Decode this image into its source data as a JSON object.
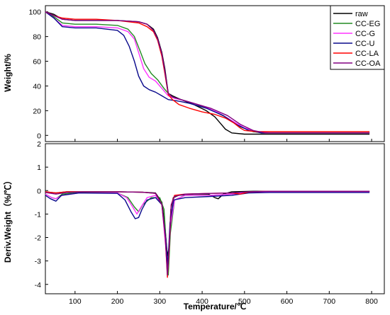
{
  "chart_data": [
    {
      "type": "line",
      "ylabel": "Weight/%",
      "xlim": [
        30,
        830
      ],
      "ylim": [
        -5,
        105
      ],
      "yticks": [
        0,
        20,
        40,
        60,
        80,
        100
      ],
      "legend_position": "top-right",
      "legend": [
        "raw",
        "CC-EG",
        "CC-G",
        "CC-U",
        "CC-LA",
        "CC-OA"
      ],
      "series": [
        {
          "name": "raw",
          "color": "#000000",
          "x": [
            30,
            50,
            70,
            100,
            150,
            200,
            250,
            270,
            285,
            295,
            305,
            312,
            320,
            330,
            350,
            380,
            410,
            430,
            445,
            455,
            470,
            500,
            550,
            650,
            750,
            795
          ],
          "y": [
            100,
            98,
            94,
            93,
            93,
            93,
            92,
            90,
            86,
            79,
            67,
            54,
            34,
            32,
            29,
            25,
            20,
            15,
            9,
            5,
            2,
            1,
            1,
            1,
            1,
            1
          ]
        },
        {
          "name": "CC-EG",
          "color": "#228B22",
          "x": [
            30,
            50,
            70,
            100,
            150,
            200,
            225,
            240,
            255,
            265,
            280,
            295,
            310,
            320,
            330,
            350,
            380,
            420,
            460,
            490,
            520,
            550,
            650,
            795
          ],
          "y": [
            100,
            96,
            91,
            90,
            90,
            89,
            86,
            80,
            67,
            58,
            50,
            45,
            38,
            34,
            31,
            29,
            26,
            21,
            14,
            7,
            3,
            2,
            2,
            2
          ]
        },
        {
          "name": "CC-G",
          "color": "#FF33FF",
          "x": [
            30,
            50,
            70,
            100,
            150,
            200,
            225,
            240,
            252,
            262,
            275,
            290,
            305,
            320,
            335,
            360,
            400,
            440,
            470,
            500,
            530,
            560,
            650,
            795
          ],
          "y": [
            100,
            95,
            89,
            88,
            88,
            87,
            84,
            78,
            65,
            54,
            47,
            44,
            38,
            32,
            30,
            28,
            24,
            18,
            12,
            6,
            3,
            2,
            2,
            2
          ]
        },
        {
          "name": "CC-U",
          "color": "#0A0A8C",
          "x": [
            30,
            50,
            70,
            100,
            150,
            200,
            215,
            228,
            240,
            250,
            262,
            275,
            290,
            305,
            320,
            340,
            370,
            410,
            450,
            480,
            510,
            540,
            650,
            795
          ],
          "y": [
            100,
            95,
            88,
            87,
            87,
            85,
            81,
            72,
            60,
            48,
            40,
            37,
            35,
            32,
            29,
            28,
            26,
            22,
            16,
            9,
            4,
            2,
            2,
            2
          ]
        },
        {
          "name": "CC-LA",
          "color": "#FF0000",
          "x": [
            30,
            50,
            70,
            100,
            150,
            200,
            250,
            270,
            285,
            295,
            305,
            312,
            320,
            330,
            345,
            370,
            400,
            430,
            455,
            475,
            490,
            500,
            530,
            560,
            650,
            795
          ],
          "y": [
            100,
            97,
            95,
            94,
            94,
            93,
            91,
            88,
            84,
            77,
            64,
            50,
            33,
            29,
            25,
            22,
            19,
            17,
            14,
            10,
            6,
            4,
            3,
            3,
            3,
            3
          ]
        },
        {
          "name": "CC-OA",
          "color": "#800080",
          "x": [
            30,
            50,
            70,
            100,
            150,
            200,
            250,
            270,
            285,
            295,
            305,
            312,
            320,
            330,
            350,
            380,
            420,
            460,
            490,
            520,
            550,
            650,
            795
          ],
          "y": [
            100,
            97,
            94,
            93,
            93,
            93,
            92,
            90,
            85,
            78,
            66,
            52,
            34,
            31,
            29,
            26,
            22,
            16,
            9,
            4,
            2,
            2,
            2
          ]
        }
      ]
    },
    {
      "type": "line",
      "xlabel": "Temperature/℃",
      "ylabel": "Deriv.Weight（%/℃）",
      "xlim": [
        30,
        830
      ],
      "ylim": [
        -4.4,
        2
      ],
      "xticks": [
        100,
        200,
        300,
        400,
        500,
        600,
        700,
        800
      ],
      "yticks": [
        2,
        1,
        0,
        -1,
        -2,
        -3,
        -4
      ],
      "series": [
        {
          "name": "raw",
          "color": "#000000",
          "x": [
            30,
            55,
            80,
            120,
            200,
            260,
            290,
            305,
            312,
            318,
            322,
            326,
            332,
            345,
            380,
            415,
            430,
            438,
            450,
            470,
            520,
            650,
            795
          ],
          "y": [
            -0.05,
            -0.1,
            -0.05,
            -0.05,
            -0.05,
            -0.07,
            -0.1,
            -0.5,
            -1.5,
            -2.8,
            -2.4,
            -0.8,
            -0.3,
            -0.2,
            -0.15,
            -0.15,
            -0.3,
            -0.35,
            -0.15,
            -0.05,
            -0.03,
            -0.03,
            -0.03
          ]
        },
        {
          "name": "CC-EG",
          "color": "#228B22",
          "x": [
            30,
            45,
            55,
            70,
            110,
            200,
            225,
            240,
            250,
            260,
            280,
            300,
            310,
            316,
            320,
            325,
            335,
            360,
            420,
            470,
            510,
            560,
            650,
            795
          ],
          "y": [
            -0.15,
            -0.3,
            -0.35,
            -0.15,
            -0.08,
            -0.1,
            -0.3,
            -0.7,
            -0.9,
            -0.6,
            -0.3,
            -0.3,
            -0.8,
            -2.5,
            -3.6,
            -1.8,
            -0.4,
            -0.2,
            -0.2,
            -0.15,
            -0.08,
            -0.05,
            -0.05,
            -0.05
          ]
        },
        {
          "name": "CC-G",
          "color": "#FF33FF",
          "x": [
            30,
            45,
            55,
            70,
            110,
            200,
            222,
            236,
            246,
            256,
            270,
            290,
            305,
            313,
            319,
            325,
            335,
            360,
            420,
            470,
            510,
            560,
            650,
            795
          ],
          "y": [
            -0.15,
            -0.3,
            -0.35,
            -0.2,
            -0.1,
            -0.1,
            -0.3,
            -0.7,
            -1.0,
            -0.7,
            -0.3,
            -0.2,
            -0.6,
            -2.2,
            -3.4,
            -1.5,
            -0.4,
            -0.2,
            -0.2,
            -0.15,
            -0.08,
            -0.05,
            -0.05,
            -0.05
          ]
        },
        {
          "name": "CC-U",
          "color": "#0A0A8C",
          "x": [
            30,
            42,
            55,
            68,
            110,
            200,
            218,
            232,
            242,
            250,
            258,
            270,
            290,
            305,
            314,
            319,
            324,
            333,
            360,
            420,
            470,
            510,
            560,
            650,
            795
          ],
          "y": [
            -0.2,
            -0.35,
            -0.45,
            -0.2,
            -0.1,
            -0.12,
            -0.4,
            -0.9,
            -1.2,
            -1.15,
            -0.8,
            -0.4,
            -0.3,
            -0.6,
            -2.0,
            -3.2,
            -1.4,
            -0.4,
            -0.3,
            -0.25,
            -0.2,
            -0.1,
            -0.08,
            -0.08,
            -0.08
          ]
        },
        {
          "name": "CC-LA",
          "color": "#FF0000",
          "x": [
            30,
            55,
            80,
            120,
            200,
            260,
            290,
            305,
            313,
            318,
            322,
            327,
            335,
            360,
            420,
            470,
            490,
            510,
            550,
            650,
            795
          ],
          "y": [
            -0.05,
            -0.1,
            -0.05,
            -0.05,
            -0.05,
            -0.07,
            -0.12,
            -0.6,
            -2.0,
            -3.7,
            -2.5,
            -0.6,
            -0.2,
            -0.15,
            -0.12,
            -0.1,
            -0.15,
            -0.06,
            -0.03,
            -0.03,
            -0.03
          ]
        },
        {
          "name": "CC-OA",
          "color": "#800080",
          "x": [
            30,
            55,
            80,
            120,
            200,
            260,
            290,
            305,
            313,
            318,
            322,
            327,
            335,
            360,
            420,
            470,
            510,
            560,
            650,
            795
          ],
          "y": [
            -0.08,
            -0.15,
            -0.08,
            -0.05,
            -0.05,
            -0.07,
            -0.12,
            -0.6,
            -2.0,
            -3.6,
            -2.4,
            -0.6,
            -0.25,
            -0.15,
            -0.12,
            -0.1,
            -0.05,
            -0.03,
            -0.03,
            -0.03
          ]
        }
      ]
    }
  ]
}
